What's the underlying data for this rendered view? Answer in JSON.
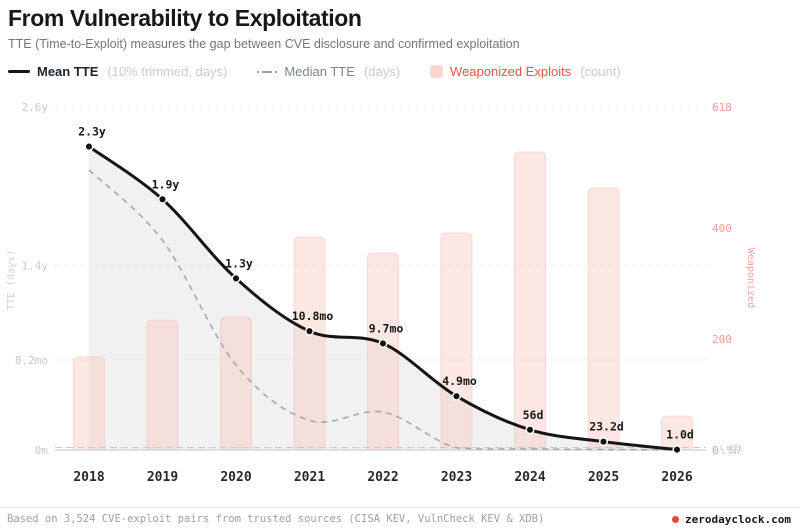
{
  "header": {
    "title": "From Vulnerability to Exploitation",
    "subtitle": "TTE (Time-to-Exploit) measures the gap between CVE disclosure and confirmed exploitation"
  },
  "legend": [
    {
      "label": "Mean TTE",
      "note": "(10% trimmed, days)"
    },
    {
      "label": "Median TTE",
      "note": "(days)"
    },
    {
      "label": "Weaponized Exploits",
      "note": "(count)"
    }
  ],
  "chart_data": {
    "type": "combo",
    "categories": [
      "2018",
      "2019",
      "2020",
      "2021",
      "2022",
      "2023",
      "2024",
      "2025",
      "2026"
    ],
    "series": [
      {
        "name": "Mean TTE",
        "unit": "days, 10% trimmed",
        "type": "line",
        "values_days": [
          840,
          694,
          475,
          329,
          295,
          149,
          56,
          23.2,
          1.0
        ],
        "point_labels": [
          "2.3y",
          "1.9y",
          "1.3y",
          "10.8mo",
          "9.7mo",
          "4.9mo",
          "56d",
          "23.2d",
          "1.0d"
        ]
      },
      {
        "name": "Median TTE",
        "unit": "days",
        "type": "line",
        "style": "dashed",
        "values_days": [
          775,
          580,
          235,
          82,
          105,
          6,
          3,
          1.5,
          0.5
        ]
      },
      {
        "name": "Weaponized Exploits",
        "unit": "count",
        "type": "bar",
        "values": [
          168,
          234,
          240,
          384,
          355,
          391,
          537,
          472,
          61
        ]
      }
    ],
    "left_axis": {
      "title": "TTE (days)",
      "ticks": [
        {
          "label": "2.6y",
          "months": 31.2
        },
        {
          "label": "1.4y",
          "months": 16.8
        },
        {
          "label": "8.2mo",
          "months": 8.2
        },
        {
          "label": "0m",
          "months": 0
        }
      ]
    },
    "right_axis": {
      "title": "Weaponized",
      "ticks": [
        {
          "label": "618",
          "value": 618
        },
        {
          "label": "400",
          "value": 400
        },
        {
          "label": "200",
          "value": 200
        },
        {
          "label": "0",
          "value": 0
        }
      ]
    },
    "reference_lines": [
      {
        "label": "1 WEEK",
        "days": 7
      },
      {
        "label": "1 DAY",
        "days": 1
      }
    ],
    "grid": "horizontal-dashed",
    "legend_position": "top"
  },
  "colors": {
    "mean_line": "#151515",
    "median_line": "#a3a8af",
    "bar_fill": "#f7c5bd",
    "bar_edge": "#f0aaa0",
    "area_fill": "#e7e8ea",
    "grid": "#ebebec",
    "ref_line": "#c7cad0",
    "left_tick": "#c6c9cf",
    "right_tick": "#ef9d93",
    "accent_red": "#e8453c"
  },
  "footer": {
    "source": "Based on 3,524 CVE-exploit pairs from trusted sources (CISA KEV, VulnCheck KEV & XDB)",
    "brand": "zerodayclock.com"
  }
}
